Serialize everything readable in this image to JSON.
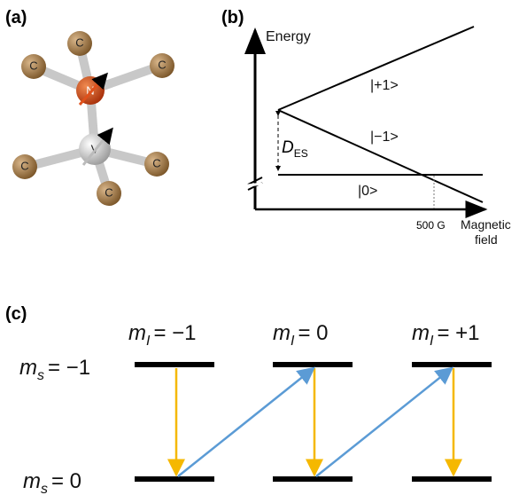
{
  "panel_a": {
    "label": "(a)",
    "carbons": [
      "C",
      "C",
      "C",
      "C",
      "C",
      "C"
    ],
    "nitrogen": "N",
    "vacancy": "V"
  },
  "panel_b": {
    "label": "(b)",
    "y_axis": "Energy",
    "x_axis": [
      "Magnetic",
      "field"
    ],
    "states": [
      "|+1>",
      "|−1>",
      "|0>"
    ],
    "splitting": {
      "symbol": "D",
      "subscript": "ES"
    },
    "crossing": "500 G"
  },
  "panel_c": {
    "label": "(c)",
    "columns": [
      {
        "symbol": "m",
        "subscript": "I",
        "value": "= −1"
      },
      {
        "symbol": "m",
        "subscript": "I",
        "value": "= 0"
      },
      {
        "symbol": "m",
        "subscript": "I",
        "value": "= +1"
      }
    ],
    "rows": [
      {
        "symbol": "m",
        "subscript": "s",
        "value": "= −1"
      },
      {
        "symbol": "m",
        "subscript": "s",
        "value": "= 0"
      }
    ]
  }
}
